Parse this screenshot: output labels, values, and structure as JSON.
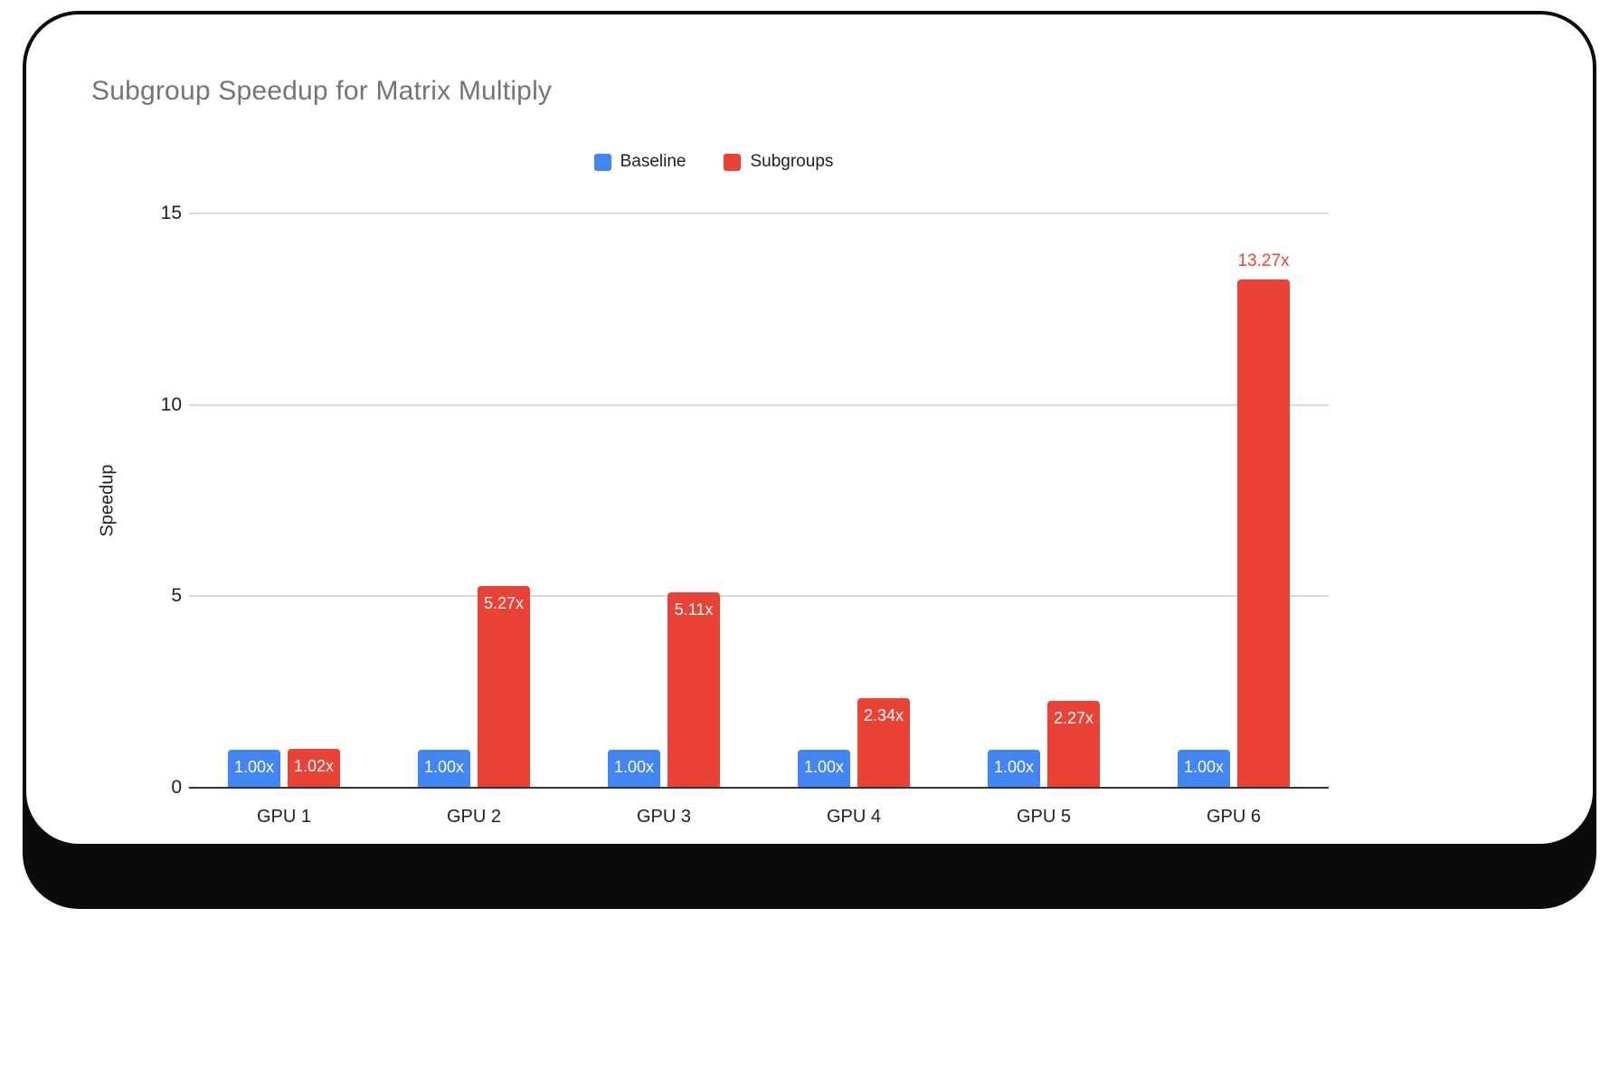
{
  "chart_data": {
    "type": "bar",
    "title": "Subgroup Speedup for Matrix Multiply",
    "xlabel": "",
    "ylabel": "Speedup",
    "categories": [
      "GPU 1",
      "GPU 2",
      "GPU 3",
      "GPU 4",
      "GPU 5",
      "GPU 6"
    ],
    "series": [
      {
        "name": "Baseline",
        "color": "#4285F4",
        "values": [
          1.0,
          1.0,
          1.0,
          1.0,
          1.0,
          1.0
        ],
        "labels": [
          "1.00x",
          "1.00x",
          "1.00x",
          "1.00x",
          "1.00x",
          "1.00x"
        ],
        "label_positions": [
          "inside",
          "inside",
          "inside",
          "inside",
          "inside",
          "inside"
        ]
      },
      {
        "name": "Subgroups",
        "color": "#EA4335",
        "values": [
          1.02,
          5.27,
          5.11,
          2.34,
          2.27,
          13.27
        ],
        "labels": [
          "1.02x",
          "5.27x",
          "5.11x",
          "2.34x",
          "2.27x",
          "13.27x"
        ],
        "label_positions": [
          "inside",
          "inside",
          "inside",
          "inside",
          "inside",
          "above"
        ]
      }
    ],
    "ylim": [
      0,
      15
    ],
    "yticks": [
      0,
      5,
      10,
      15
    ],
    "grid": true,
    "legend_position": "top",
    "title_color": "#757575",
    "inside_label_color": "#ffffff",
    "axis_line_color": "#333333",
    "gridline_color": "#d9d9d9"
  }
}
